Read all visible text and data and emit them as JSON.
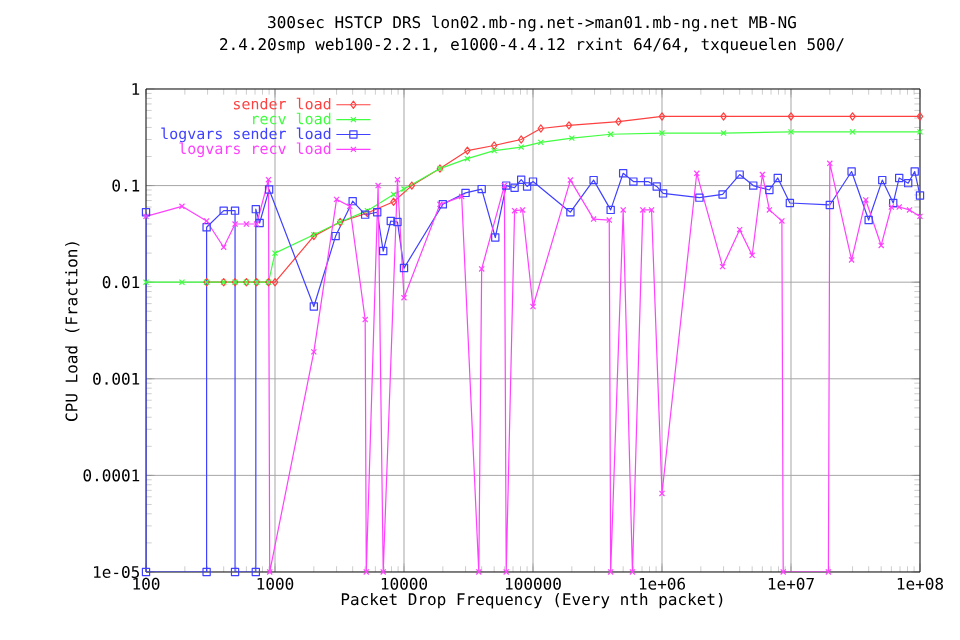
{
  "chart_data": {
    "type": "line",
    "title": "300sec HSTCP DRS lon02.mb-ng.net->man01.mb-ng.net MB-NG",
    "subtitle": "2.4.20smp web100-2.2.1, e1000-4.4.12 rxint 64/64, txqueuelen 500/",
    "xlabel": "Packet Drop Frequency (Every nth packet)",
    "ylabel": "CPU Load (Fraction)",
    "log": "xy",
    "grid": true,
    "legend": "top left",
    "line_style": "solid",
    "xlim": [
      100,
      100000000
    ],
    "ylim": [
      1e-05,
      1
    ],
    "xticks": [
      100,
      1000,
      10000,
      100000,
      {
        "value": 1000000,
        "label": "1e+06"
      },
      {
        "value": 10000000,
        "label": "1e+07"
      },
      {
        "value": 100000000,
        "label": "1e+08"
      }
    ],
    "yticks": [
      {
        "value": 1e-05,
        "label": "1e-05"
      },
      0.0001,
      0.001,
      0.01,
      0.1,
      1
    ],
    "series": [
      {
        "name": "sender load",
        "color": "#ff4040",
        "marker": "diamond",
        "x": [
          295,
          400,
          490,
          600,
          720,
          890,
          1000,
          2000,
          3200,
          5200,
          8300,
          11500,
          19000,
          31000,
          50000,
          81000,
          115000,
          190000,
          460000,
          1000000,
          3000000,
          10000000,
          30000000,
          100000000
        ],
        "values": [
          0.01,
          0.01,
          0.01,
          0.01,
          0.01,
          0.01,
          0.01,
          0.03,
          0.042,
          0.052,
          0.068,
          0.1,
          0.15,
          0.23,
          0.26,
          0.3,
          0.39,
          0.42,
          0.46,
          0.52,
          0.52,
          0.52,
          0.52,
          0.52
        ]
      },
      {
        "name": "recv load",
        "color": "#40ff40",
        "marker": "cross",
        "x": [
          100,
          190,
          295,
          400,
          490,
          600,
          720,
          890,
          1000,
          2000,
          3200,
          5200,
          8300,
          10000,
          19000,
          31000,
          50000,
          81000,
          115000,
          200000,
          400000,
          1000000,
          3000000,
          10000000,
          30000000,
          100000000
        ],
        "values": [
          0.01,
          0.01,
          0.01,
          0.01,
          0.01,
          0.01,
          0.01,
          0.01,
          0.02,
          0.031,
          0.042,
          0.055,
          0.081,
          0.092,
          0.15,
          0.19,
          0.23,
          0.25,
          0.28,
          0.31,
          0.34,
          0.35,
          0.35,
          0.36,
          0.36,
          0.36
        ]
      },
      {
        "name": "logvars sender load",
        "color": "#4040ff",
        "marker": "square",
        "x": [
          100,
          100,
          295,
          295,
          400,
          490,
          490,
          710,
          710,
          760,
          900,
          2000,
          2950,
          4000,
          5000,
          6200,
          6900,
          7900,
          8900,
          10000,
          20000,
          30000,
          40000,
          51000,
          62000,
          72000,
          81000,
          90000,
          100000,
          195000,
          295000,
          400000,
          500000,
          600000,
          780000,
          910000,
          1020000,
          1950000,
          2950000,
          4000000,
          5100000,
          6800000,
          7900000,
          9800000,
          20000000,
          29500000,
          40000000,
          51000000,
          62000000,
          69000000,
          81000000,
          91000000,
          100000000
        ],
        "values": [
          0.053,
          1e-05,
          1e-05,
          0.037,
          0.055,
          0.055,
          1e-05,
          1e-05,
          0.057,
          0.041,
          0.091,
          0.0056,
          0.03,
          0.069,
          0.05,
          0.053,
          0.021,
          0.043,
          0.042,
          0.014,
          0.064,
          0.084,
          0.092,
          0.029,
          0.1,
          0.095,
          0.115,
          0.098,
          0.11,
          0.053,
          0.114,
          0.056,
          0.134,
          0.11,
          0.11,
          0.098,
          0.083,
          0.075,
          0.081,
          0.13,
          0.1,
          0.09,
          0.12,
          0.066,
          0.063,
          0.14,
          0.044,
          0.114,
          0.066,
          0.12,
          0.106,
          0.14,
          0.079
        ]
      },
      {
        "name": "logvars recv load",
        "color": "#ff40ff",
        "marker": "cross",
        "x": [
          100,
          190,
          295,
          400,
          490,
          600,
          720,
          890,
          910,
          2000,
          3000,
          3800,
          5000,
          5100,
          6300,
          6900,
          8900,
          10000,
          19000,
          28000,
          38000,
          40000,
          60000,
          62000,
          72000,
          83000,
          100000,
          195000,
          295000,
          390000,
          400000,
          500000,
          590000,
          710000,
          830000,
          1000000,
          1860000,
          2950000,
          4000000,
          5000000,
          6000000,
          6800000,
          8500000,
          8700000,
          19500000,
          20000000,
          29500000,
          38000000,
          50000000,
          60000000,
          69000000,
          83000000,
          100000000
        ],
        "values": [
          0.048,
          0.061,
          0.043,
          0.023,
          0.04,
          0.04,
          0.04,
          0.115,
          1e-05,
          0.0019,
          0.072,
          0.061,
          0.0041,
          1e-05,
          0.1,
          1e-05,
          0.115,
          0.0069,
          0.064,
          0.077,
          1e-05,
          0.0137,
          0.1,
          1e-05,
          0.055,
          0.056,
          0.0056,
          0.114,
          0.045,
          0.044,
          1e-05,
          0.056,
          1e-05,
          0.056,
          0.056,
          6.5e-05,
          0.134,
          0.0145,
          0.035,
          0.019,
          0.13,
          0.056,
          0.043,
          1e-05,
          1e-05,
          0.17,
          0.017,
          0.071,
          0.024,
          0.06,
          0.06,
          0.056,
          0.048
        ]
      }
    ]
  }
}
